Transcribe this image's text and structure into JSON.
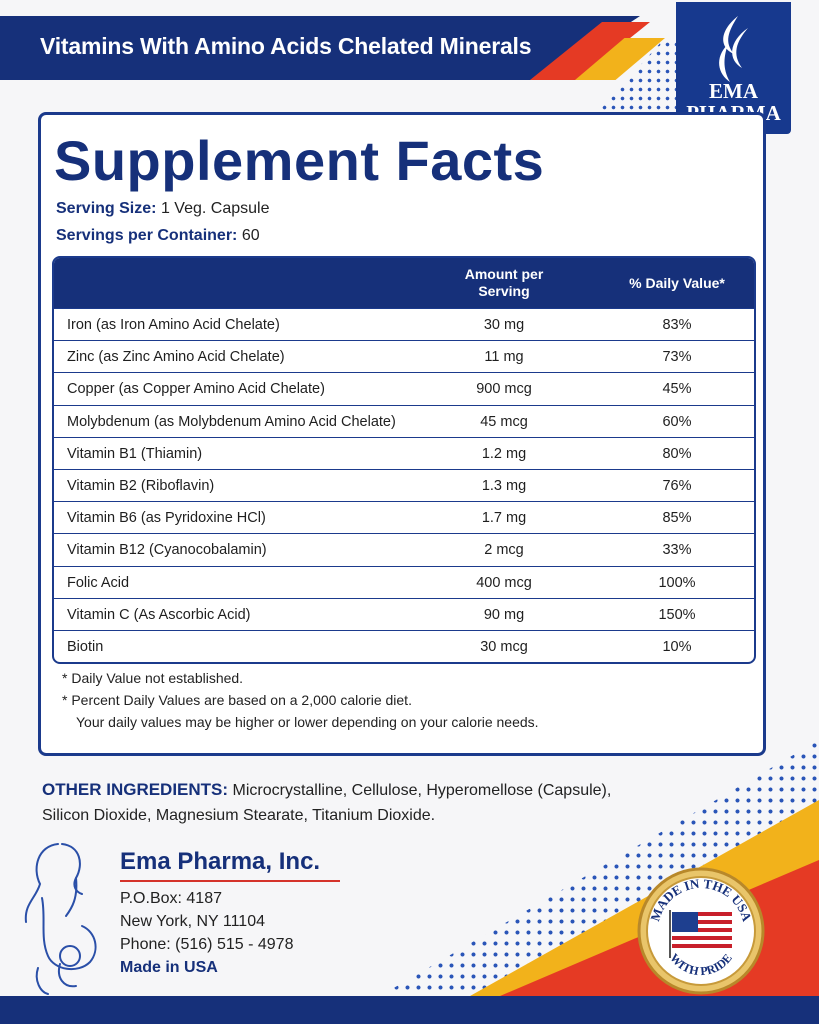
{
  "header": {
    "title": "Vitamins With Amino Acids Chelated Minerals"
  },
  "logo": {
    "line1": "EMA",
    "line2": "PHARMA"
  },
  "facts": {
    "title": "Supplement Facts",
    "serving_size_label": "Serving Size:",
    "serving_size_value": "1 Veg. Capsule",
    "servings_label": "Servings per Container:",
    "servings_value": "60"
  },
  "table": {
    "headers": {
      "amount": "Amount per Serving",
      "dv": "% Daily Value*"
    },
    "rows": [
      {
        "name": "Iron (as Iron Amino Acid Chelate)",
        "amount": "30 mg",
        "dv": "83%"
      },
      {
        "name": "Zinc (as Zinc Amino Acid Chelate)",
        "amount": "11 mg",
        "dv": "73%"
      },
      {
        "name": "Copper (as Copper Amino Acid Chelate)",
        "amount": "900 mcg",
        "dv": "45%"
      },
      {
        "name": "Molybdenum (as Molybdenum Amino Acid Chelate)",
        "amount": "45 mcg",
        "dv": "60%"
      },
      {
        "name": "Vitamin B1 (Thiamin)",
        "amount": "1.2 mg",
        "dv": "80%"
      },
      {
        "name": "Vitamin B2 (Riboflavin)",
        "amount": "1.3 mg",
        "dv": "76%"
      },
      {
        "name": "Vitamin B6 (as Pyridoxine HCl)",
        "amount": "1.7 mg",
        "dv": "85%"
      },
      {
        "name": "Vitamin B12 (Cyanocobalamin)",
        "amount": "2 mcg",
        "dv": "33%"
      },
      {
        "name": "Folic Acid",
        "amount": "400 mcg",
        "dv": "100%"
      },
      {
        "name": "Vitamin C (As Ascorbic Acid)",
        "amount": "90 mg",
        "dv": "150%"
      },
      {
        "name": "Biotin",
        "amount": "30 mcg",
        "dv": "10%"
      }
    ],
    "notes": [
      "* Daily Value not established.",
      "* Percent Daily Values are based on a 2,000 calorie diet.",
      "Your daily values may be higher or lower depending on your calorie needs."
    ]
  },
  "ingredients": {
    "label": "OTHER INGREDIENTS:",
    "text": "Microcrystalline, Cellulose, Hyperomellose (Capsule), Silicon Dioxide, Magnesium Stearate, Titanium Dioxide."
  },
  "company": {
    "name": "Ema Pharma, Inc.",
    "po_box": "P.O.Box: 4187",
    "city": "New York, NY 11104",
    "phone": "Phone: (516) 515 - 4978",
    "made_in": "Made in USA"
  },
  "seal": {
    "top_text": "MADE IN THE USA",
    "bottom_text": "WITH PRIDE"
  },
  "colors": {
    "navy": "#16307a",
    "red": "#e53a24",
    "yellow": "#f2b21b"
  }
}
